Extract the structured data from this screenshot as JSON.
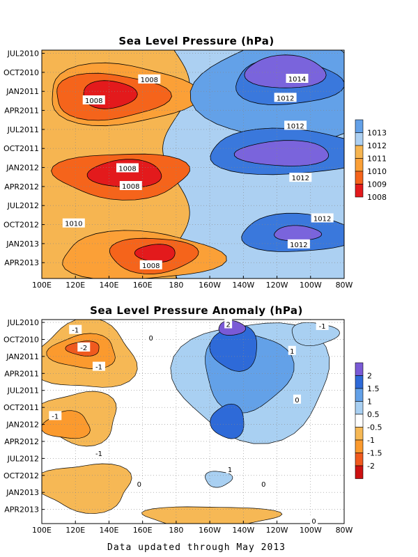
{
  "footer": "Data updated through May 2013",
  "colors": {
    "slp": [
      "#e31a1c",
      "#f5641b",
      "#fba037",
      "#f6b551",
      "#acd0f2",
      "#63a1e8",
      "#3a78dc",
      "#7a64dc"
    ],
    "anom": [
      "#cc1111",
      "#f05a1e",
      "#fb9a2e",
      "#f6b855",
      "#ffffff",
      "#a9d0f2",
      "#63a1e8",
      "#2e6ad8",
      "#7a5ad6"
    ]
  },
  "chart_data": [
    {
      "type": "heatmap",
      "title": "Sea Level Pressure (hPa)",
      "xlabels": [
        "100E",
        "120E",
        "140E",
        "160E",
        "180",
        "160W",
        "140W",
        "120W",
        "100W",
        "80W"
      ],
      "ylabels": [
        "JUL2010",
        "OCT2010",
        "JAN2011",
        "APR2011",
        "JUL2011",
        "OCT2011",
        "JAN2012",
        "APR2012",
        "JUL2012",
        "OCT2012",
        "JAN2013",
        "APR2013"
      ],
      "xlim": [
        100,
        280
      ],
      "ylim": [
        "2010-06",
        "2013-05"
      ],
      "grid": true,
      "colorbar": {
        "labels": [
          "1008",
          "1009",
          "1010",
          "1011",
          "1012",
          "1013"
        ]
      },
      "contour_labels": [
        {
          "text": "1008",
          "lon": 164,
          "t": 4.1
        },
        {
          "text": "1008",
          "lon": 131,
          "t": 7.4
        },
        {
          "text": "1014",
          "lon": 252,
          "t": 4.0
        },
        {
          "text": "1012",
          "lon": 245,
          "t": 7.0
        },
        {
          "text": "1012",
          "lon": 251,
          "t": 11.4
        },
        {
          "text": "1008",
          "lon": 151,
          "t": 18.1
        },
        {
          "text": "1008",
          "lon": 153,
          "t": 20.9
        },
        {
          "text": "1012",
          "lon": 254,
          "t": 19.6
        },
        {
          "text": "1010",
          "lon": 119,
          "t": 26.8
        },
        {
          "text": "1012",
          "lon": 267,
          "t": 26.0
        },
        {
          "text": "1012",
          "lon": 253,
          "t": 30.1
        },
        {
          "text": "1008",
          "lon": 165,
          "t": 33.4
        }
      ]
    },
    {
      "type": "heatmap",
      "title": "Sea Level Pressure Anomaly (hPa)",
      "xlabels": [
        "100E",
        "120E",
        "140E",
        "160E",
        "180",
        "160W",
        "140W",
        "120W",
        "100W",
        "80W"
      ],
      "ylabels": [
        "JUL2010",
        "OCT2010",
        "JAN2011",
        "APR2011",
        "JUL2011",
        "OCT2011",
        "JAN2012",
        "APR2012",
        "JUL2012",
        "OCT2012",
        "JAN2013",
        "APR2013"
      ],
      "xlim": [
        100,
        280
      ],
      "ylim": [
        "2010-06",
        "2013-05"
      ],
      "grid": true,
      "colorbar": {
        "labels": [
          "2",
          "1.5",
          "1",
          "0.5",
          "-0.5",
          "-1",
          "-1.5",
          "-2"
        ]
      },
      "contour_labels": [
        {
          "text": "2",
          "lon": 211,
          "t": 0.3
        },
        {
          "text": "-1",
          "lon": 267,
          "t": 0.6
        },
        {
          "text": "-1",
          "lon": 120,
          "t": 1.3
        },
        {
          "text": "0",
          "lon": 165,
          "t": 2.7
        },
        {
          "text": "-2",
          "lon": 125,
          "t": 4.4
        },
        {
          "text": "1",
          "lon": 249,
          "t": 5.0
        },
        {
          "text": "-1",
          "lon": 134,
          "t": 7.8
        },
        {
          "text": "0",
          "lon": 252,
          "t": 13.6
        },
        {
          "text": "-1",
          "lon": 108,
          "t": 16.5
        },
        {
          "text": "-1",
          "lon": 134,
          "t": 23.1
        },
        {
          "text": "1",
          "lon": 212,
          "t": 25.9
        },
        {
          "text": "0",
          "lon": 158,
          "t": 28.5
        },
        {
          "text": "0",
          "lon": 232,
          "t": 28.5
        },
        {
          "text": "0",
          "lon": 262,
          "t": 35.0
        }
      ]
    }
  ]
}
